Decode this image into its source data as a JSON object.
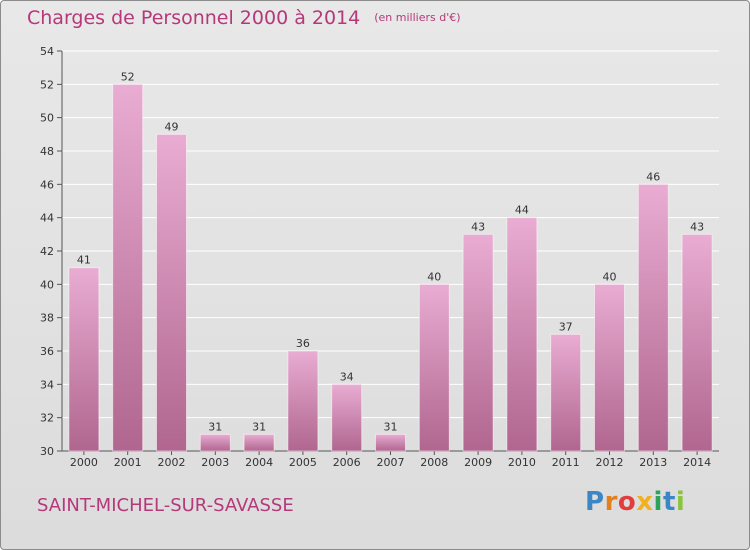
{
  "header": {
    "title": "Charges de Personnel 2000 à 2014",
    "subtitle": "(en milliers d'€)"
  },
  "footer": {
    "commune": "SAINT-MICHEL-SUR-SAVASSE",
    "logo_letters": [
      "P",
      "r",
      "o",
      "x",
      "i",
      "t",
      "i"
    ]
  },
  "colors": {
    "accent": "#b5387a",
    "bar_top": "#e9acd2",
    "bar_bottom": "#b0668f",
    "grid": "#ffffff"
  },
  "chart_data": {
    "type": "bar",
    "title": "Charges de Personnel 2000 à 2014",
    "subtitle": "(en milliers d'€)",
    "categories": [
      "2000",
      "2001",
      "2002",
      "2003",
      "2004",
      "2005",
      "2006",
      "2007",
      "2008",
      "2009",
      "2010",
      "2011",
      "2012",
      "2013",
      "2014"
    ],
    "values": [
      41,
      52,
      49,
      31,
      31,
      36,
      34,
      31,
      40,
      43,
      44,
      37,
      40,
      46,
      43
    ],
    "ylim": [
      30,
      54
    ],
    "yticks": [
      30,
      32,
      34,
      36,
      38,
      40,
      42,
      44,
      46,
      48,
      50,
      52,
      54
    ],
    "grid": true,
    "data_labels": true
  }
}
